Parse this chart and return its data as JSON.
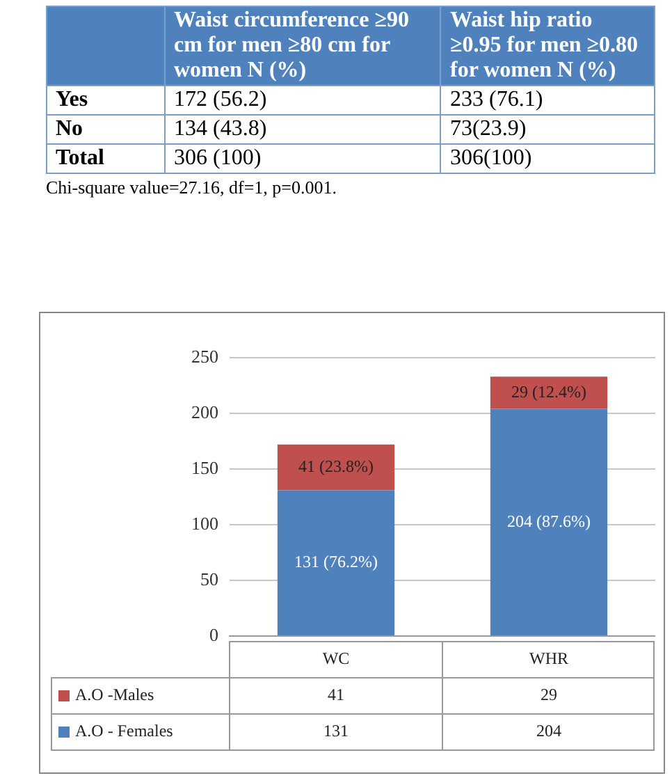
{
  "chart_data": [
    {
      "type": "other",
      "categories": [
        null,
        "Waist circumference ≥90 cm for men ≥80 cm for women N (%)",
        "Waist hip ratio ≥0.95 for men ≥0.80 for women N (%)"
      ],
      "y_categories": [
        "Yes",
        "No",
        "Total"
      ],
      "cell_labels": [
        [
          "172 (56.2)",
          "233 (76.1)"
        ],
        [
          "134 (43.8)",
          "73(23.9)"
        ],
        [
          "306 (100)",
          "306(100)"
        ]
      ],
      "annotations": [
        "Chi-square value=27.16, df=1, p=0.001."
      ]
    },
    {
      "type": "bar",
      "stacked": true,
      "categories": [
        "WC",
        "WHR"
      ],
      "series": [
        {
          "name": "A.O - Females",
          "color": "#4f81bd",
          "values": [
            131,
            204
          ]
        },
        {
          "name": "A.O -Males",
          "color": "#c0504d",
          "values": [
            41,
            29
          ]
        }
      ],
      "annotations": [
        "131 (76.2%)",
        "204 (87.6%)",
        "41 (23.8%)",
        "29 (12.4%)"
      ],
      "ylim": [
        0,
        250
      ],
      "yticks": [
        0,
        50,
        100,
        150,
        200,
        250
      ],
      "grid": "y",
      "legend": "bottom",
      "data_labels": true
    }
  ]
}
